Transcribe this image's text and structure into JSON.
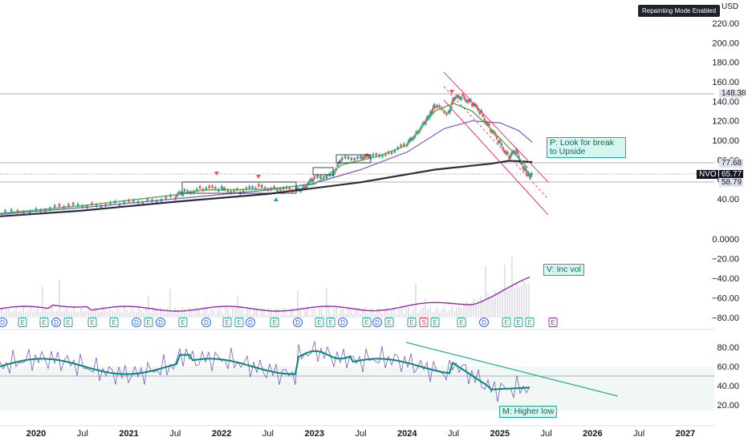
{
  "header": {
    "repaint_badge": "Repainting Mode Enabled",
    "currency": "USD"
  },
  "price_axis": [
    "220.00",
    "200.00",
    "180.00",
    "160.00",
    "140.00",
    "120.00",
    "100.00",
    "80.00",
    "60.00",
    "40.00"
  ],
  "volume_axis": [
    "0.0000",
    "−20.00",
    "−40.00",
    "−60.00",
    "−80.00"
  ],
  "rsi_axis": [
    "80.00",
    "60.00",
    "40.00",
    "20.00"
  ],
  "time_axis": [
    {
      "label": "2020",
      "bold": true
    },
    {
      "label": "Jul",
      "bold": false
    },
    {
      "label": "2021",
      "bold": true
    },
    {
      "label": "Jul",
      "bold": false
    },
    {
      "label": "2022",
      "bold": true
    },
    {
      "label": "Jul",
      "bold": false
    },
    {
      "label": "2023",
      "bold": true
    },
    {
      "label": "Jul",
      "bold": false
    },
    {
      "label": "2024",
      "bold": true
    },
    {
      "label": "Jul",
      "bold": false
    },
    {
      "label": "2025",
      "bold": true
    },
    {
      "label": "Jul",
      "bold": false
    },
    {
      "label": "2026",
      "bold": true
    },
    {
      "label": "Jul",
      "bold": false
    },
    {
      "label": "2027",
      "bold": true
    }
  ],
  "price_tags": {
    "high": "148.38",
    "ma": "77.68",
    "symbol": "NVO",
    "last": "65.77",
    "support": "58.79"
  },
  "annotations": {
    "price": "P: Look for break to Upside",
    "volume": "V: Inc vol",
    "momentum": "M: Higher low"
  },
  "event_markers": [
    "D",
    "E",
    "E",
    "D",
    "E",
    "E",
    "E",
    "D",
    "E",
    "D",
    "E",
    "D",
    "E",
    "E",
    "D",
    "E",
    "D",
    "E",
    "E",
    "D",
    "E",
    "D",
    "E",
    "E",
    "S",
    "E",
    "E",
    "D",
    "E",
    "E",
    "E",
    "E",
    "D",
    "E",
    "E"
  ],
  "event_colors": {
    "D": "#2962ff",
    "E": "#22ab94",
    "S": "#f23645",
    "future_E": "#9c27b0"
  },
  "colors": {
    "up_candle": "#26a69a",
    "down_candle": "#ef5350",
    "ma_fast": "#4caf50",
    "ma_mid": "#7e57c2",
    "ma_slow": "#2a2e39",
    "channel": "#e91e63",
    "volume_ma": "#9c27b0",
    "rsi": "#7e57c2",
    "rsi_ma": "#00897b",
    "trendline": "#22ab94"
  }
}
